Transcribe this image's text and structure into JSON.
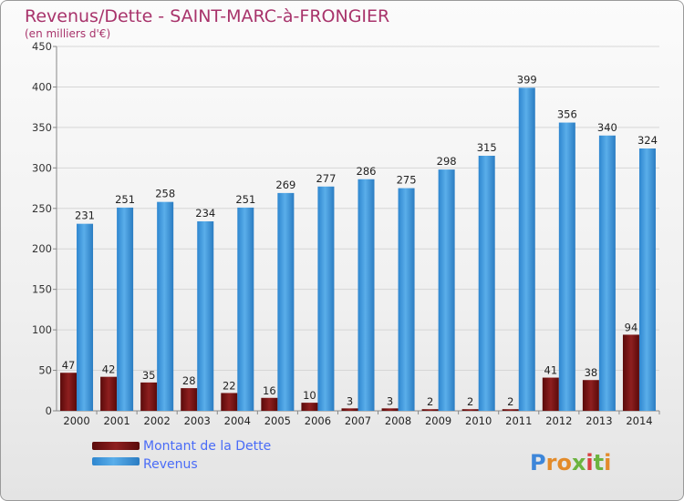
{
  "chart_data": {
    "type": "bar",
    "title": "Revenus/Dette - SAINT-MARC-à-FRONGIER",
    "subtitle": "(en milliers d'€)",
    "categories": [
      "2000",
      "2001",
      "2002",
      "2003",
      "2004",
      "2005",
      "2006",
      "2007",
      "2008",
      "2009",
      "2010",
      "2011",
      "2012",
      "2013",
      "2014"
    ],
    "series": [
      {
        "name": "Montant de la Dette",
        "color": "#7a1010",
        "values": [
          47,
          42,
          35,
          28,
          22,
          16,
          10,
          3,
          3,
          2,
          2,
          2,
          41,
          38,
          94
        ]
      },
      {
        "name": "Revenus",
        "color": "#4aa3e6",
        "values": [
          231,
          251,
          258,
          234,
          251,
          269,
          277,
          286,
          275,
          298,
          315,
          399,
          356,
          340,
          324
        ]
      }
    ],
    "yticks": [
      0,
      50,
      100,
      150,
      200,
      250,
      300,
      350,
      400,
      450
    ],
    "ylim": [
      0,
      450
    ],
    "grid": true,
    "legend": "bottom-left"
  },
  "watermark": {
    "text": "Proxiti"
  }
}
